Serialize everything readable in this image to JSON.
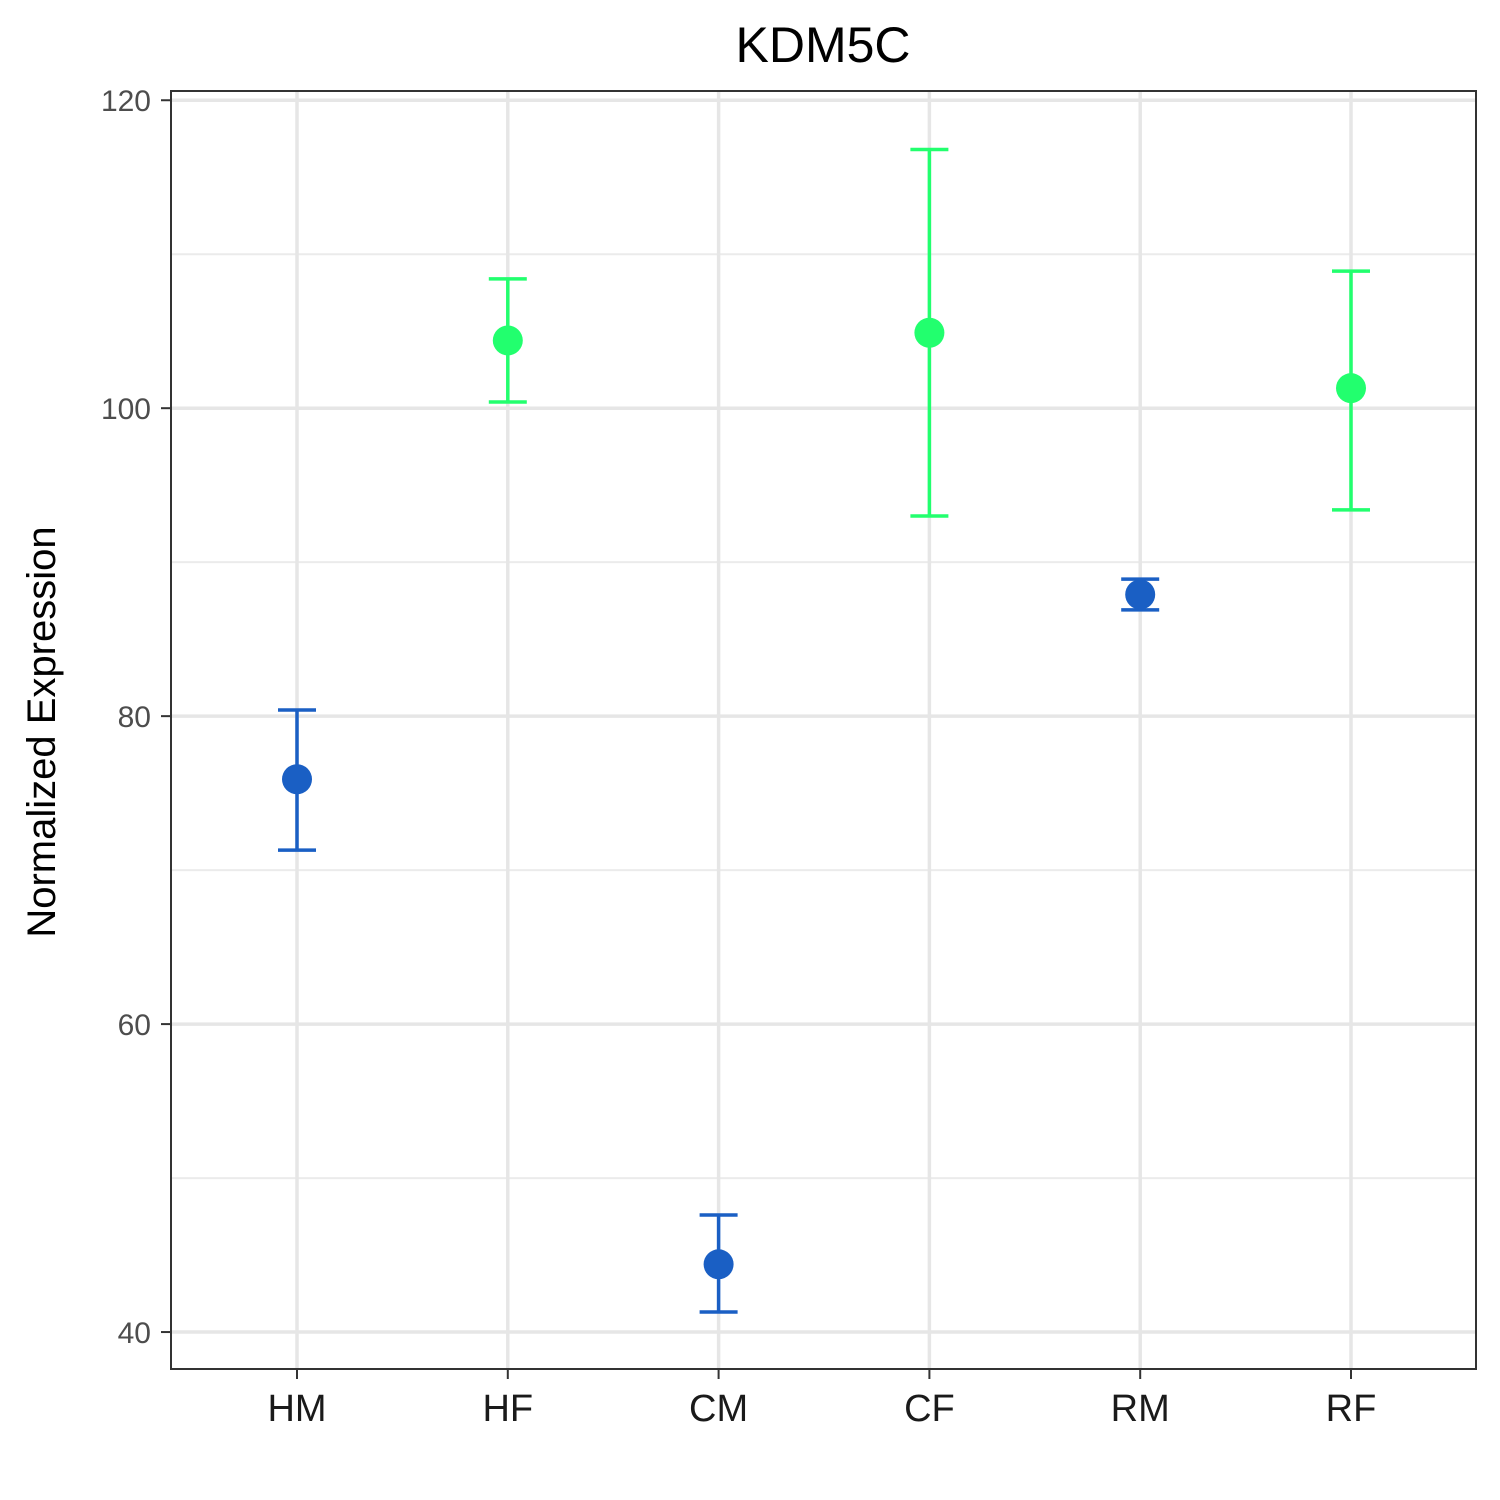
{
  "chart_data": {
    "type": "scatter",
    "title": "KDM5C",
    "xlabel": "",
    "ylabel": "Normalized Expression",
    "categories": [
      "HM",
      "HF",
      "CM",
      "CF",
      "RM",
      "RF"
    ],
    "ylim": [
      37.6,
      120.6
    ],
    "yticks": [
      40,
      60,
      80,
      100,
      120
    ],
    "grid": true,
    "legend": "none",
    "colors": {
      "male": "#1a5fc4",
      "female": "#22ff6e"
    },
    "points": [
      {
        "category": "HM",
        "value": 75.9,
        "lower": 71.3,
        "upper": 80.4,
        "group": "male"
      },
      {
        "category": "HF",
        "value": 104.4,
        "lower": 100.4,
        "upper": 108.4,
        "group": "female"
      },
      {
        "category": "CM",
        "value": 44.4,
        "lower": 41.3,
        "upper": 47.6,
        "group": "male"
      },
      {
        "category": "CF",
        "value": 104.9,
        "lower": 93.0,
        "upper": 116.8,
        "group": "female"
      },
      {
        "category": "RM",
        "value": 87.9,
        "lower": 86.9,
        "upper": 88.9,
        "group": "male"
      },
      {
        "category": "RF",
        "value": 101.3,
        "lower": 93.4,
        "upper": 108.9,
        "group": "female"
      }
    ]
  }
}
